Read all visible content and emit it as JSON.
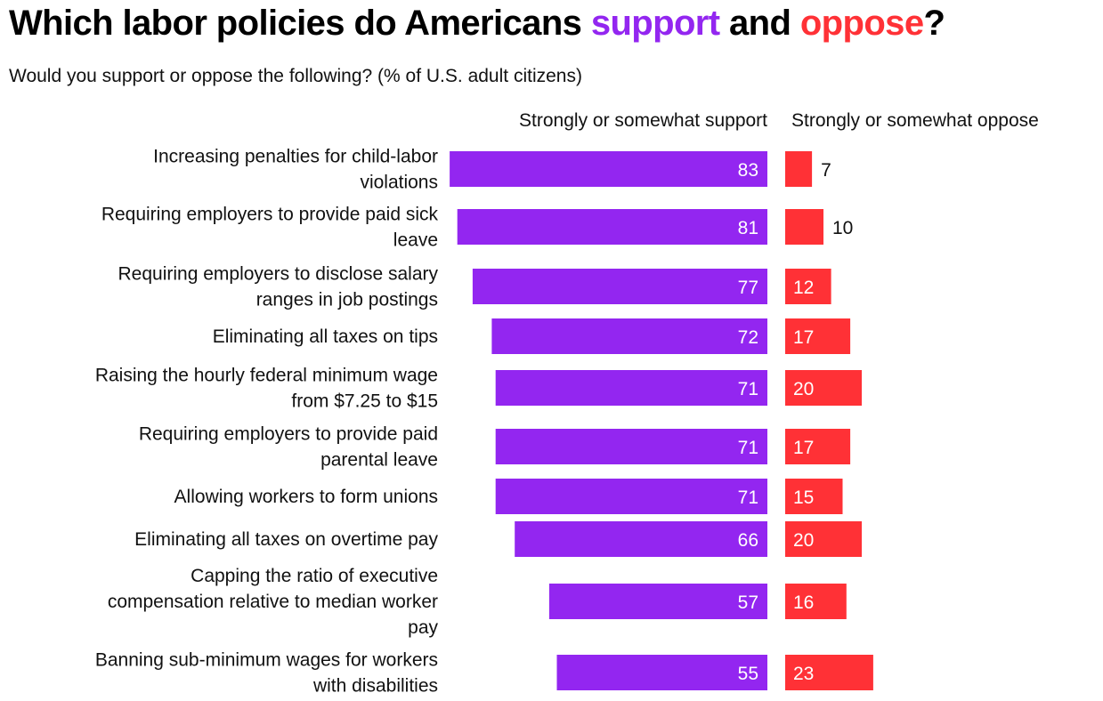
{
  "title": {
    "prefix": "Which labor policies do Americans ",
    "support_word": "support",
    "middle": " and ",
    "oppose_word": "oppose",
    "suffix": "?"
  },
  "subtitle": "Would you support or oppose the following? (% of U.S. adult citizens)",
  "colors": {
    "support": "#9326f0",
    "oppose": "#ff3136"
  },
  "chart_data": {
    "type": "bar",
    "title": "Which labor policies do Americans support and oppose?",
    "subtitle": "Would you support or oppose the following? (% of U.S. adult citizens)",
    "xlabel": "",
    "ylabel": "",
    "grid": false,
    "unit": "% of U.S. adult citizens",
    "categories": [
      "Increasing penalties for child-labor violations",
      "Requiring employers to provide paid sick leave",
      "Requiring employers to disclose salary ranges in job postings",
      "Eliminating all taxes on tips",
      "Raising the hourly federal minimum wage from $7.25 to $15",
      "Requiring employers to provide paid parental leave",
      "Allowing workers to form unions",
      "Eliminating all taxes on overtime pay",
      "Capping the ratio of executive compensation relative to median worker pay",
      "Banning sub-minimum wages for workers with disabilities"
    ],
    "category_lines": [
      [
        "Increasing penalties for child-labor",
        "violations"
      ],
      [
        "Requiring employers to provide paid sick",
        "leave"
      ],
      [
        "Requiring employers to disclose salary",
        "ranges in job postings"
      ],
      [
        "Eliminating all taxes on tips"
      ],
      [
        "Raising the hourly federal minimum wage",
        "from $7.25 to $15"
      ],
      [
        "Requiring employers to provide paid",
        "parental leave"
      ],
      [
        "Allowing workers to form unions"
      ],
      [
        "Eliminating all taxes on overtime pay"
      ],
      [
        "Capping the ratio of executive",
        "compensation relative to median worker",
        "pay"
      ],
      [
        "Banning sub-minimum wages for workers",
        "with disabilities"
      ]
    ],
    "series": [
      {
        "name": "Strongly or somewhat support",
        "color": "#9326f0",
        "values": [
          83,
          81,
          77,
          72,
          71,
          71,
          71,
          66,
          57,
          55
        ]
      },
      {
        "name": "Strongly or somewhat oppose",
        "color": "#ff3136",
        "values": [
          7,
          10,
          12,
          17,
          20,
          17,
          15,
          20,
          16,
          23
        ]
      }
    ],
    "xlim": [
      0,
      100
    ],
    "legend": "column headers above bars"
  }
}
